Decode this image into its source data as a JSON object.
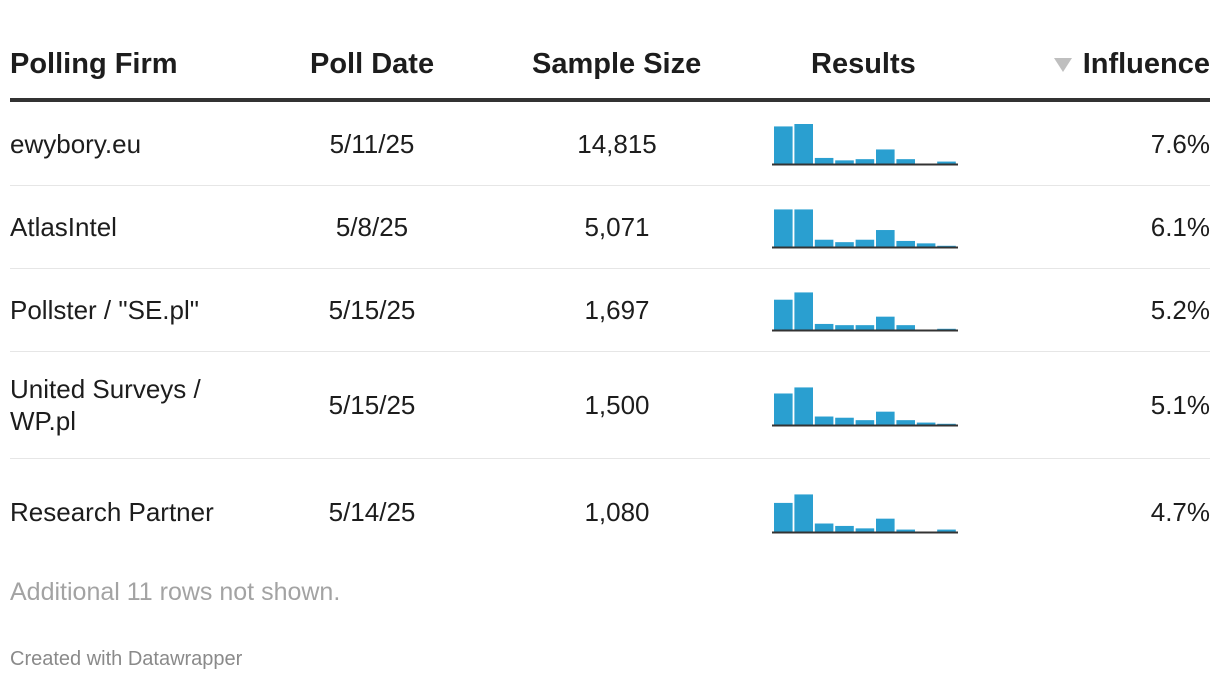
{
  "headers": {
    "firm": "Polling Firm",
    "date": "Poll Date",
    "size": "Sample Size",
    "results": "Results",
    "influence": "Influence"
  },
  "sort_icon": "sort-descending-icon",
  "bar_color": "#2a9fd0",
  "chart_data": {
    "type": "table",
    "columns": [
      "Polling Firm",
      "Poll Date",
      "Sample Size",
      "Results",
      "Influence"
    ],
    "rows": [
      {
        "firm": "ewybory.eu",
        "date": "5/11/25",
        "sample_size": "14,815",
        "influence": "7.6%",
        "results": [
          31,
          33,
          5,
          3,
          4,
          12,
          4,
          0,
          2
        ]
      },
      {
        "firm": "AtlasIntel",
        "date": "5/8/25",
        "sample_size": "5,071",
        "influence": "6.1%",
        "results": [
          31,
          31,
          6,
          4,
          6,
          14,
          5,
          3,
          1
        ]
      },
      {
        "firm": "Pollster / \"SE.pl\"",
        "date": "5/15/25",
        "sample_size": "1,697",
        "influence": "5.2%",
        "results": [
          25,
          31,
          5,
          4,
          4,
          11,
          4,
          0,
          1
        ]
      },
      {
        "firm": "United Surveys / WP.pl",
        "date": "5/15/25",
        "sample_size": "1,500",
        "influence": "5.1%",
        "results": [
          26,
          31,
          7,
          6,
          4,
          11,
          4,
          2,
          1
        ]
      },
      {
        "firm": "Research Partner",
        "date": "5/14/25",
        "sample_size": "1,080",
        "influence": "4.7%",
        "results": [
          24,
          31,
          7,
          5,
          3,
          11,
          2,
          0,
          2
        ]
      }
    ]
  },
  "note": "Additional 11 rows not shown.",
  "credit": "Created with Datawrapper"
}
